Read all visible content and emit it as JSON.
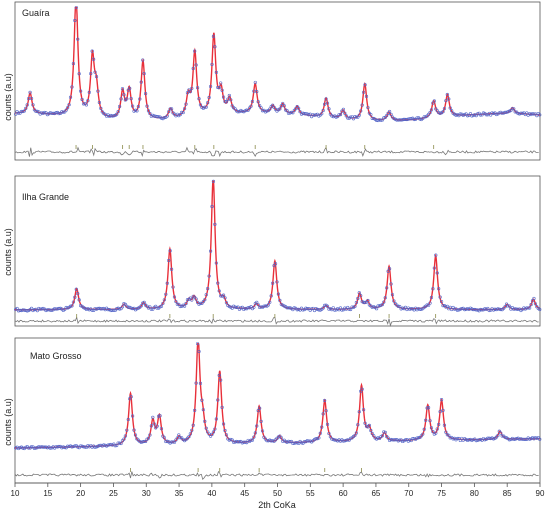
{
  "colors": {
    "observed": "#5566c8",
    "calculated": "#e8303a",
    "difference": "#777777",
    "bragg": "#8a8a4a",
    "frame": "#555555"
  },
  "chart_data": {
    "type": "line",
    "xlabel": "2th CoKa",
    "xlim": [
      10,
      90
    ],
    "x_ticks": [
      10,
      15,
      20,
      25,
      30,
      35,
      40,
      45,
      50,
      55,
      60,
      65,
      70,
      75,
      80,
      85,
      90
    ],
    "panels": [
      {
        "title": "Guaíra",
        "ylabel": "counts (a.u)",
        "baseline": 0.12,
        "peaks": [
          {
            "x": 12.3,
            "h": 0.17
          },
          {
            "x": 19.3,
            "h": 0.98
          },
          {
            "x": 21.8,
            "h": 0.48
          },
          {
            "x": 22.4,
            "h": 0.22
          },
          {
            "x": 26.4,
            "h": 0.22
          },
          {
            "x": 27.4,
            "h": 0.24
          },
          {
            "x": 29.5,
            "h": 0.48
          },
          {
            "x": 33.7,
            "h": 0.08
          },
          {
            "x": 36.4,
            "h": 0.16
          },
          {
            "x": 37.4,
            "h": 0.52
          },
          {
            "x": 40.3,
            "h": 0.65
          },
          {
            "x": 41.4,
            "h": 0.18
          },
          {
            "x": 42.7,
            "h": 0.12
          },
          {
            "x": 46.6,
            "h": 0.24
          },
          {
            "x": 49.3,
            "h": 0.06
          },
          {
            "x": 50.8,
            "h": 0.08
          },
          {
            "x": 53.0,
            "h": 0.07
          },
          {
            "x": 57.4,
            "h": 0.16
          },
          {
            "x": 60.0,
            "h": 0.07
          },
          {
            "x": 63.3,
            "h": 0.3
          },
          {
            "x": 67.0,
            "h": 0.07
          },
          {
            "x": 73.8,
            "h": 0.14
          },
          {
            "x": 75.9,
            "h": 0.18
          },
          {
            "x": 85.8,
            "h": 0.05
          }
        ],
        "bragg_ticks": [
          19.3,
          21.8,
          26.4,
          27.4,
          29.5,
          37.4,
          40.3,
          46.6,
          57.4,
          63.3,
          73.8
        ]
      },
      {
        "title": "Ilha Grande",
        "ylabel": "counts (a.u)",
        "baseline": 0.04,
        "peaks": [
          {
            "x": 19.4,
            "h": 0.16
          },
          {
            "x": 26.6,
            "h": 0.04
          },
          {
            "x": 29.6,
            "h": 0.05
          },
          {
            "x": 33.6,
            "h": 0.46
          },
          {
            "x": 36.5,
            "h": 0.06
          },
          {
            "x": 37.3,
            "h": 0.08
          },
          {
            "x": 40.2,
            "h": 1.0
          },
          {
            "x": 41.8,
            "h": 0.06
          },
          {
            "x": 46.8,
            "h": 0.04
          },
          {
            "x": 49.6,
            "h": 0.37
          },
          {
            "x": 57.4,
            "h": 0.03
          },
          {
            "x": 62.5,
            "h": 0.12
          },
          {
            "x": 63.7,
            "h": 0.06
          },
          {
            "x": 67.0,
            "h": 0.33
          },
          {
            "x": 74.1,
            "h": 0.41
          },
          {
            "x": 85.0,
            "h": 0.04
          },
          {
            "x": 89.0,
            "h": 0.08
          }
        ],
        "bragg_ticks": [
          19.4,
          33.6,
          40.2,
          49.6,
          62.5,
          67.0,
          74.1
        ]
      },
      {
        "title": "Mato Grosso",
        "ylabel": "counts (a.u)",
        "baseline": 0.12,
        "peaks": [
          {
            "x": 27.6,
            "h": 0.45
          },
          {
            "x": 31.0,
            "h": 0.2
          },
          {
            "x": 32.0,
            "h": 0.24
          },
          {
            "x": 35.0,
            "h": 0.06
          },
          {
            "x": 37.9,
            "h": 0.88
          },
          {
            "x": 38.6,
            "h": 0.16
          },
          {
            "x": 41.2,
            "h": 0.62
          },
          {
            "x": 47.2,
            "h": 0.32
          },
          {
            "x": 50.3,
            "h": 0.06
          },
          {
            "x": 57.2,
            "h": 0.36
          },
          {
            "x": 62.8,
            "h": 0.48
          },
          {
            "x": 64.0,
            "h": 0.1
          },
          {
            "x": 66.3,
            "h": 0.07
          },
          {
            "x": 72.9,
            "h": 0.3
          },
          {
            "x": 75.0,
            "h": 0.34
          },
          {
            "x": 83.9,
            "h": 0.07
          }
        ],
        "bragg_ticks": [
          27.6,
          37.9,
          41.2,
          47.2,
          57.2,
          62.8
        ]
      }
    ]
  }
}
